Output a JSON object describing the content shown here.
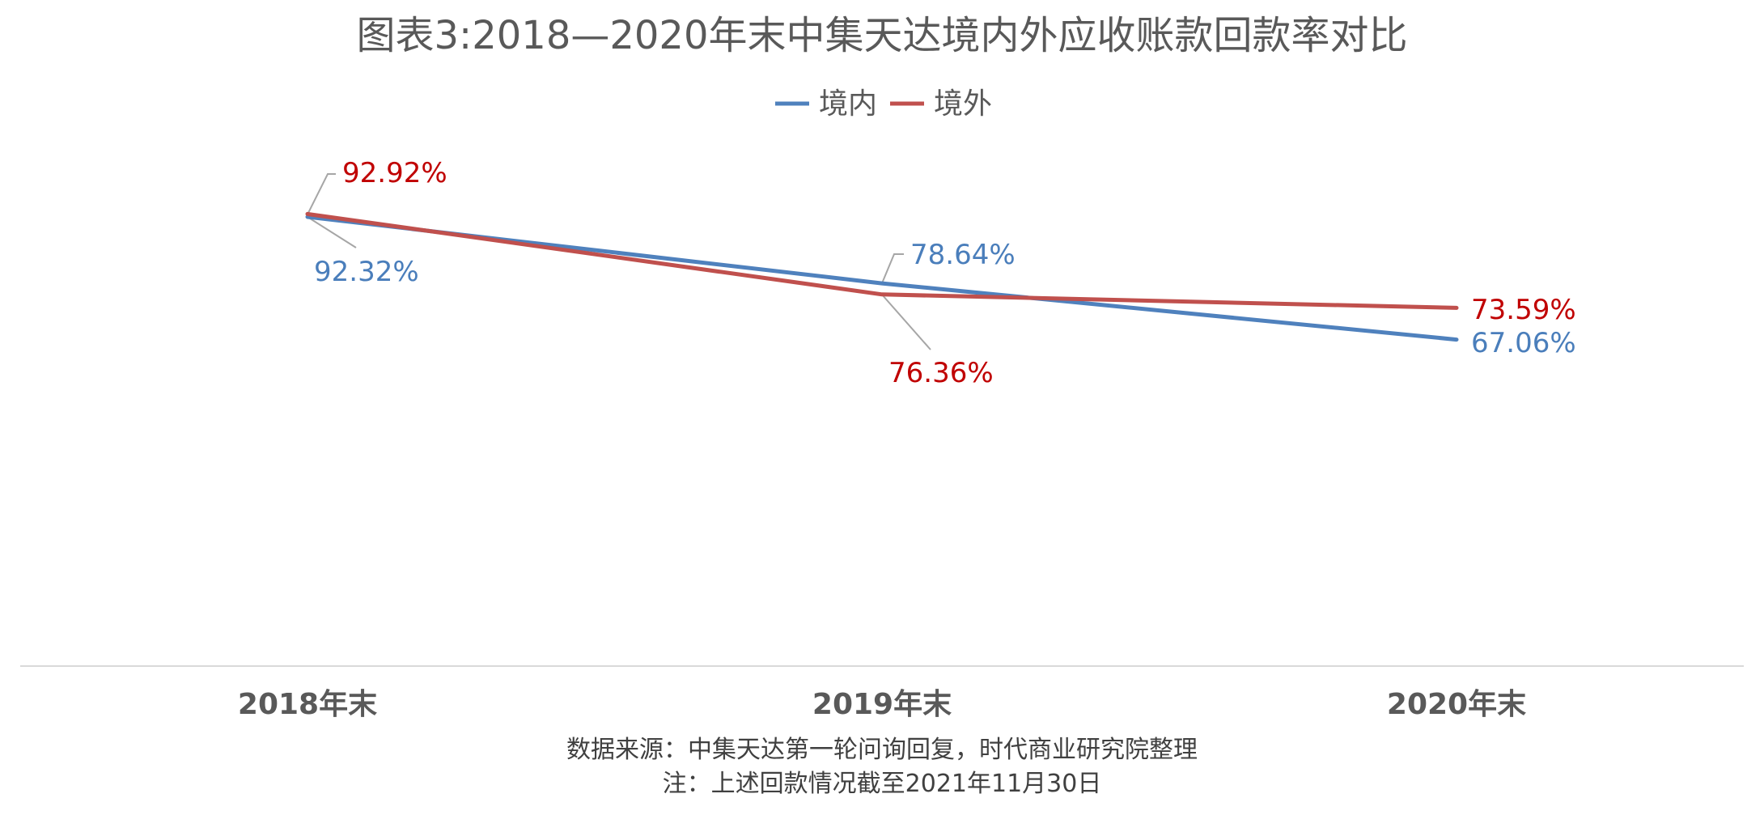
{
  "chart_data": {
    "type": "line",
    "title": "图表3:2018—2020年末中集天达境内外应收账款回款率对比",
    "categories": [
      "2018年末",
      "2019年末",
      "2020年末"
    ],
    "series": [
      {
        "name": "境内",
        "color": "#4f81bd",
        "values": [
          92.32,
          78.64,
          67.06
        ],
        "labels": [
          "92.32%",
          "78.64%",
          "67.06%"
        ]
      },
      {
        "name": "境外",
        "color": "#c0504d",
        "label_color": "#c00000",
        "values": [
          92.92,
          76.36,
          73.59
        ],
        "labels": [
          "92.92%",
          "76.36%",
          "73.59%"
        ]
      }
    ],
    "legend_position": "top",
    "grid": false,
    "xlabel": "",
    "ylabel": ""
  },
  "footer": {
    "source": "数据来源：中集天达第一轮问询回复，时代商业研究院整理",
    "note": "注：上述回款情况截至2021年11月30日"
  }
}
